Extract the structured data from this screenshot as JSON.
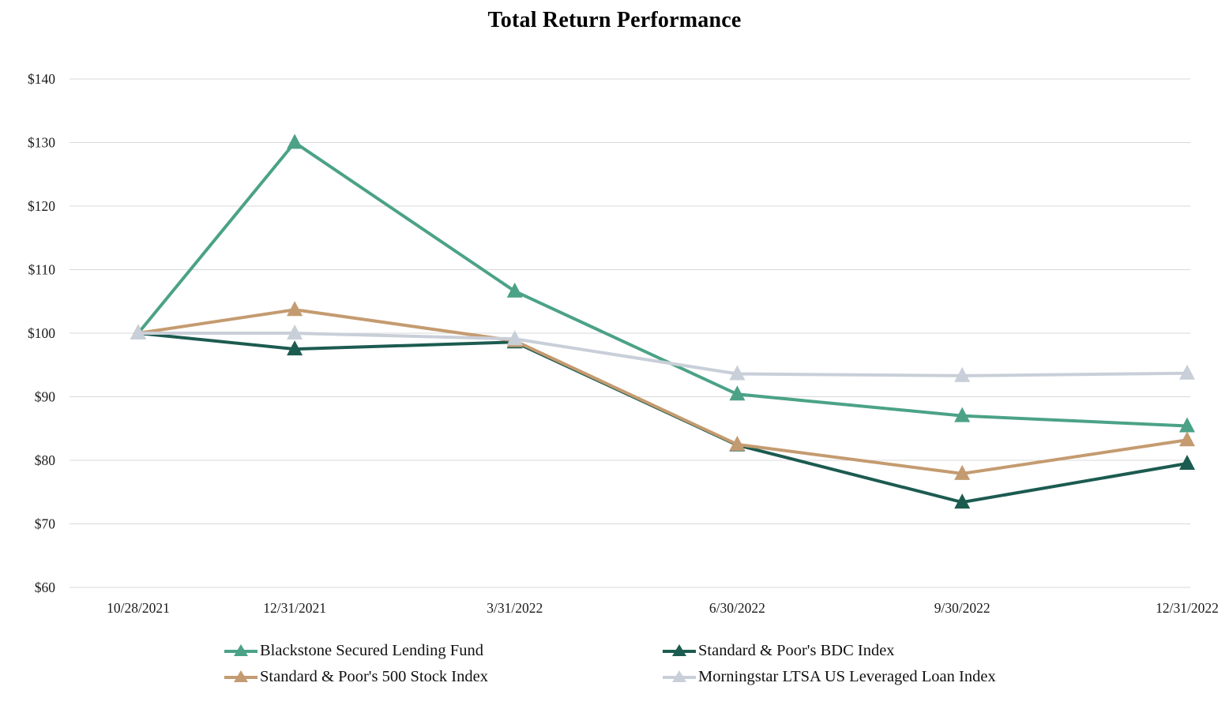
{
  "title": "Total Return Performance",
  "chart_data": {
    "type": "line",
    "title": "Total Return Performance",
    "xlabel": "",
    "ylabel": "",
    "categories": [
      "10/28/2021",
      "12/31/2021",
      "3/31/2022",
      "6/30/2022",
      "9/30/2022",
      "12/31/2022"
    ],
    "x_days": [
      0,
      64,
      154,
      245,
      337,
      429
    ],
    "ylim": [
      60,
      140
    ],
    "ytick_step": 10,
    "ytick_prefix": "$",
    "ytick_labels": [
      "$60",
      "$70",
      "$80",
      "$90",
      "$100",
      "$110",
      "$120",
      "$130",
      "$140"
    ],
    "grid": "horizontal-only",
    "gridline_color": "#d9d9d9",
    "legend_position": "bottom",
    "marker_shape": "triangle-up",
    "series": [
      {
        "name": "Blackstone Secured Lending Fund",
        "color": "#4ba287",
        "values": [
          100,
          130.0,
          106.6,
          90.4,
          87.0,
          85.4
        ]
      },
      {
        "name": "Standard & Poor's BDC Index",
        "color": "#1c5b50",
        "values": [
          100,
          97.5,
          98.6,
          82.4,
          73.4,
          79.5
        ]
      },
      {
        "name": "Standard & Poor's 500 Stock Index",
        "color": "#c49b70",
        "values": [
          100,
          103.7,
          98.8,
          82.5,
          77.9,
          83.2
        ]
      },
      {
        "name": "Morningstar LTSA US Leveraged Loan Index",
        "color": "#c9cfd9",
        "values": [
          100,
          100.0,
          99.1,
          93.6,
          93.3,
          93.7
        ]
      }
    ]
  }
}
